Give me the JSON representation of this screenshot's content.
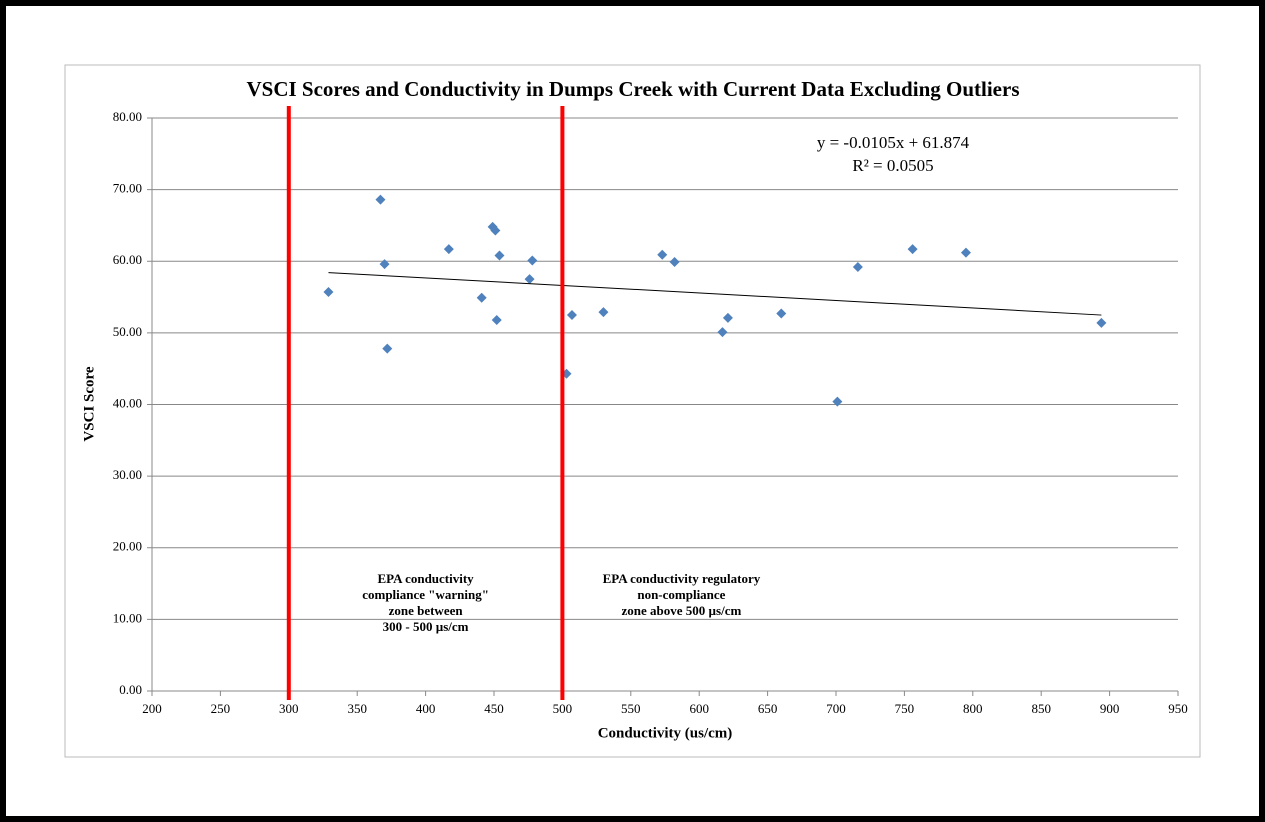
{
  "chart_data": {
    "type": "scatter",
    "title": "VSCI Scores and Conductivity in Dumps Creek with Current Data Excluding Outliers",
    "x_label": "Conductivity (us/cm)",
    "y_label": "VSCI Score",
    "xlim": [
      200,
      950
    ],
    "xticks": [
      200,
      250,
      300,
      350,
      400,
      450,
      500,
      550,
      600,
      650,
      700,
      750,
      800,
      850,
      900,
      950
    ],
    "ylim": [
      0,
      80
    ],
    "yticks": [
      {
        "value": 0,
        "label": "0.00"
      },
      {
        "value": 10,
        "label": "10.00"
      },
      {
        "value": 20,
        "label": "20.00"
      },
      {
        "value": 30,
        "label": "30.00"
      },
      {
        "value": 40,
        "label": "40.00"
      },
      {
        "value": 50,
        "label": "50.00"
      },
      {
        "value": 60,
        "label": "60.00"
      },
      {
        "value": 70,
        "label": "70.00"
      },
      {
        "value": 80,
        "label": "80.00"
      }
    ],
    "grid": true,
    "series": [
      {
        "color": "#4f81bd",
        "x": [
          329,
          367,
          370,
          372,
          417,
          441,
          454,
          449,
          451,
          452,
          476,
          478,
          507,
          530,
          503,
          573,
          582,
          617,
          621,
          660,
          701,
          716,
          756,
          795,
          894
        ],
        "values": [
          55.7,
          68.6,
          59.6,
          47.8,
          61.7,
          54.9,
          60.8,
          64.8,
          64.3,
          51.8,
          57.5,
          60.1,
          52.5,
          52.9,
          44.3,
          60.9,
          59.9,
          50.1,
          52.1,
          52.7,
          40.4,
          59.2,
          61.7,
          61.2,
          51.4
        ]
      }
    ],
    "trendline": {
      "slope": -0.0105,
      "intercept": 61.874,
      "equation": "y = -0.0105x + 61.874",
      "r2_label": "R² = 0.0505"
    },
    "reference_lines": {
      "x": [
        300,
        500
      ],
      "color": "#ff0000"
    },
    "annotations": [
      {
        "x": 400,
        "y": 15.5,
        "lines": [
          "EPA conductivity",
          "compliance \"warning\"",
          "zone between",
          "300 - 500 µs/cm"
        ]
      },
      {
        "x": 587,
        "y": 15.5,
        "lines": [
          "EPA conductivity regulatory",
          "non-compliance",
          "zone above 500 µs/cm"
        ]
      }
    ]
  }
}
